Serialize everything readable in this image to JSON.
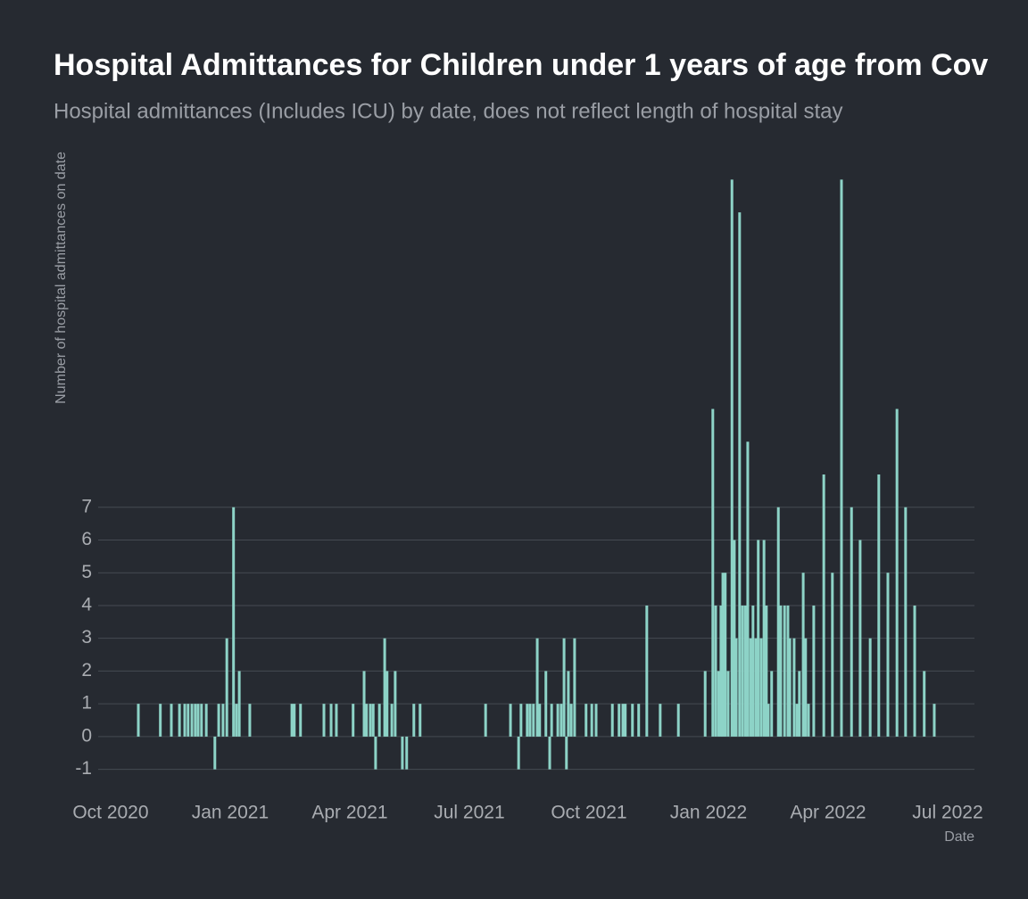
{
  "chart_data": {
    "type": "bar",
    "title": "Hospital Admittances for Children under 1 years of age from Cov",
    "subtitle": "Hospital admittances (Includes ICU) by date, does not reflect length of hospital stay",
    "y_label": "Number of hospital admittances on date",
    "x_label": "Date",
    "color": "#8dd3c7",
    "grid": true,
    "x": [
      2020.808,
      2020.854,
      2020.877,
      2020.894,
      2020.905,
      2020.912,
      2020.92,
      2020.927,
      2020.933,
      2020.94,
      2020.95,
      2020.968,
      2020.976,
      2020.985,
      2020.993,
      2021.007,
      2021.013,
      2021.019,
      2021.041,
      2021.129,
      2021.134,
      2021.147,
      2021.196,
      2021.211,
      2021.222,
      2021.257,
      2021.28,
      2021.285,
      2021.293,
      2021.299,
      2021.304,
      2021.312,
      2021.323,
      2021.328,
      2021.338,
      2021.345,
      2021.36,
      2021.369,
      2021.384,
      2021.397,
      2021.534,
      2021.586,
      2021.603,
      2021.608,
      2021.621,
      2021.627,
      2021.634,
      2021.642,
      2021.647,
      2021.66,
      2021.668,
      2021.672,
      2021.685,
      2021.692,
      2021.698,
      2021.703,
      2021.707,
      2021.713,
      2021.72,
      2021.744,
      2021.756,
      2021.765,
      2021.799,
      2021.813,
      2021.821,
      2021.826,
      2021.841,
      2021.854,
      2021.871,
      2021.899,
      2021.937,
      2021.993,
      2022.009,
      2022.015,
      2022.021,
      2022.026,
      2022.03,
      2022.035,
      2022.041,
      2022.049,
      2022.054,
      2022.058,
      2022.065,
      2022.071,
      2022.077,
      2022.082,
      2022.088,
      2022.093,
      2022.099,
      2022.104,
      2022.11,
      2022.116,
      2022.121,
      2022.125,
      2022.132,
      2022.146,
      2022.151,
      2022.159,
      2022.166,
      2022.17,
      2022.179,
      2022.185,
      2022.19,
      2022.198,
      2022.203,
      2022.209,
      2022.22,
      2022.241,
      2022.259,
      2022.278,
      2022.299,
      2022.317,
      2022.338,
      2022.356,
      2022.375,
      2022.394,
      2022.412,
      2022.431,
      2022.451,
      2022.472
    ],
    "values": [
      1,
      1,
      1,
      1,
      1,
      1,
      1,
      1,
      1,
      1,
      1,
      -1,
      1,
      1,
      3,
      7,
      1,
      2,
      1,
      1,
      1,
      1,
      1,
      1,
      1,
      1,
      2,
      1,
      1,
      1,
      -1,
      1,
      3,
      2,
      1,
      2,
      -1,
      -1,
      1,
      1,
      1,
      1,
      -1,
      1,
      1,
      1,
      1,
      3,
      1,
      2,
      -1,
      1,
      1,
      1,
      3,
      -1,
      2,
      1,
      3,
      1,
      1,
      1,
      1,
      1,
      1,
      1,
      1,
      1,
      4,
      1,
      1,
      2,
      10,
      4,
      2,
      4,
      5,
      5,
      2,
      17,
      6,
      3,
      16,
      4,
      4,
      9,
      3,
      4,
      3,
      6,
      3,
      6,
      4,
      1,
      2,
      7,
      4,
      4,
      4,
      3,
      3,
      1,
      2,
      5,
      3,
      1,
      4,
      8,
      5,
      17,
      7,
      6,
      3,
      8,
      5,
      10,
      7,
      4,
      2,
      1
    ],
    "xlim": [
      2020.724,
      2022.556
    ],
    "xticks": [
      {
        "value": 2020.75,
        "label": "Oct 2020"
      },
      {
        "value": 2021,
        "label": "Jan 2021"
      },
      {
        "value": 2021.25,
        "label": "Apr 2021"
      },
      {
        "value": 2021.5,
        "label": "Jul 2021"
      },
      {
        "value": 2021.75,
        "label": "Oct 2021"
      },
      {
        "value": 2022,
        "label": "Jan 2022"
      },
      {
        "value": 2022.25,
        "label": "Apr 2022"
      },
      {
        "value": 2022.5,
        "label": "Jul 2022"
      }
    ],
    "ylim": [
      -1.5,
      17.5
    ],
    "yticks": [
      -1,
      0,
      1,
      2,
      3,
      4,
      5,
      6,
      7
    ]
  }
}
